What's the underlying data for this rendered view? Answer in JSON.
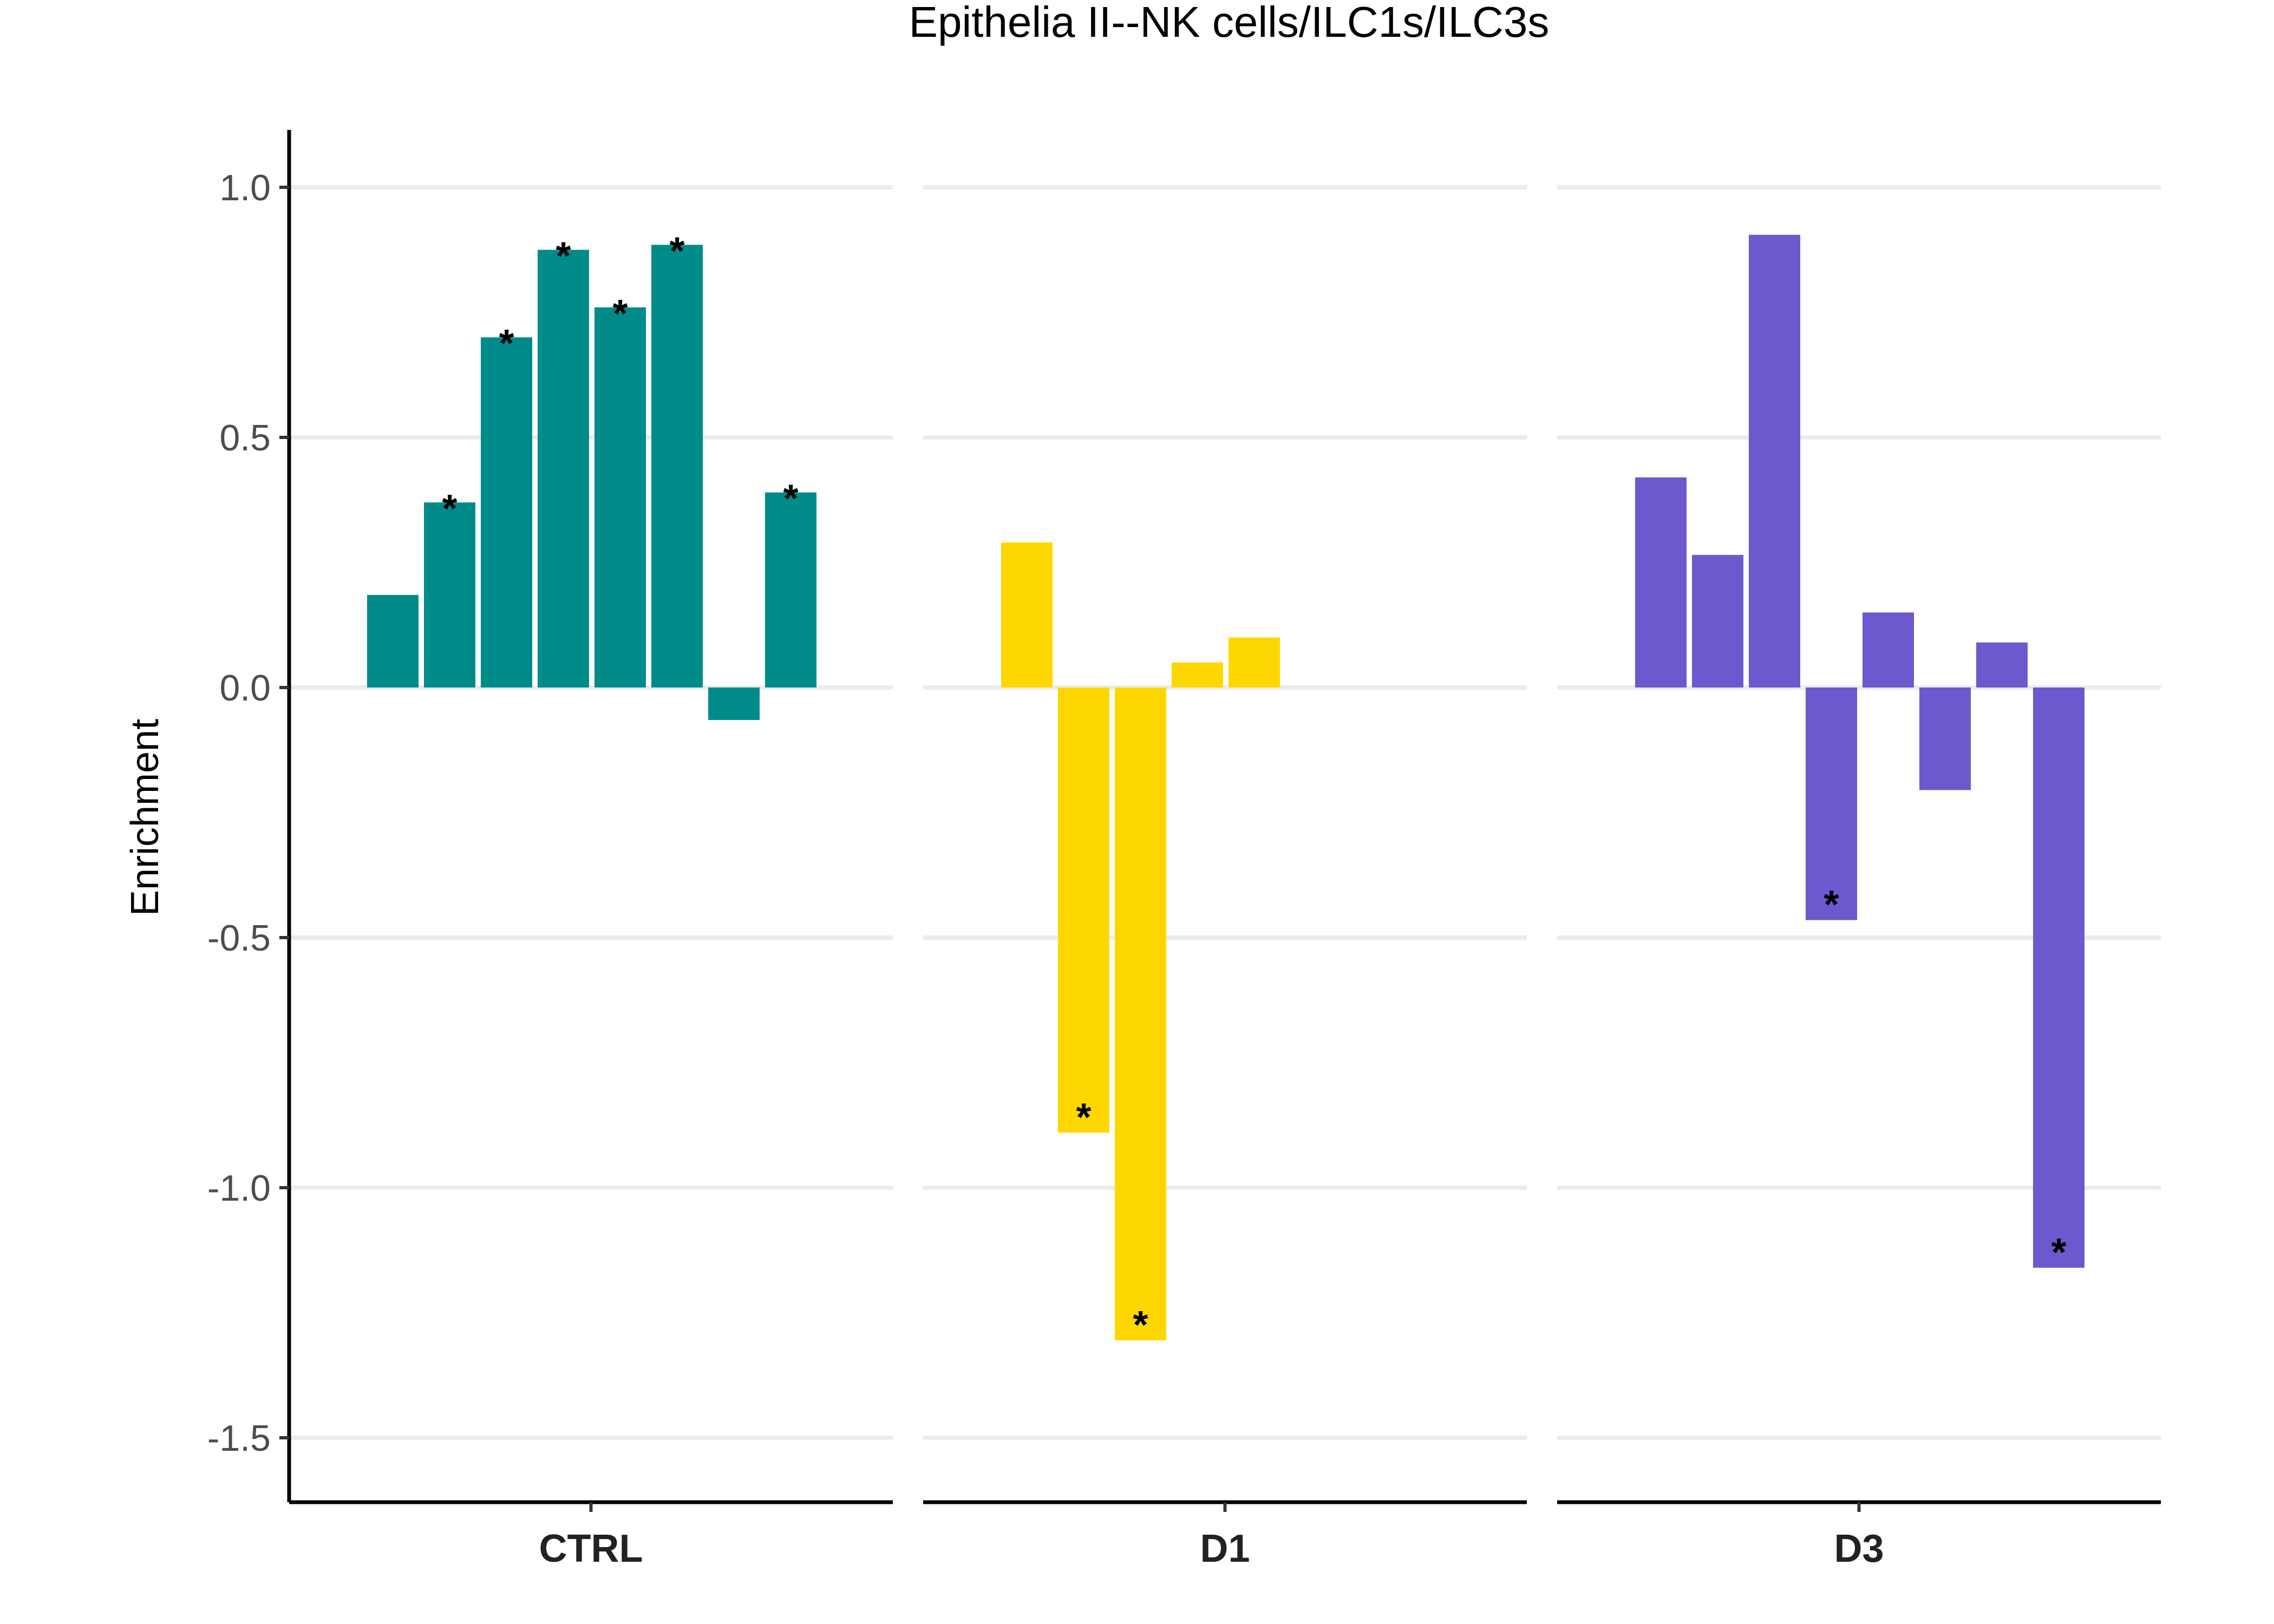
{
  "chart_data": {
    "type": "bar",
    "title": "Epithelia II--NK cells/ILC1s/ILC3s",
    "ylabel": "Enrichment",
    "xlabel": "",
    "ylim": [
      -1.62,
      1.12
    ],
    "yticks": [
      1.0,
      0.5,
      0.0,
      -0.5,
      -1.0,
      -1.5
    ],
    "ytick_labels": [
      "1.0",
      "0.5",
      "0.0",
      "-0.5",
      "-1.0",
      "-1.5"
    ],
    "grid": true,
    "significance_marker": "*",
    "panels": [
      {
        "name": "CTRL",
        "color": "#008B8B",
        "bars": [
          {
            "slot": 1,
            "value": 0.185,
            "sig": false
          },
          {
            "slot": 2,
            "value": 0.37,
            "sig": true
          },
          {
            "slot": 3,
            "value": 0.7,
            "sig": true
          },
          {
            "slot": 4,
            "value": 0.875,
            "sig": true
          },
          {
            "slot": 5,
            "value": 0.76,
            "sig": true
          },
          {
            "slot": 6,
            "value": 0.885,
            "sig": true
          },
          {
            "slot": 7,
            "value": -0.065,
            "sig": false
          },
          {
            "slot": 8,
            "value": 0.39,
            "sig": true
          }
        ]
      },
      {
        "name": "D1",
        "color": "#FFD700",
        "bars": [
          {
            "slot": 1,
            "value": 0.29,
            "sig": false
          },
          {
            "slot": 2,
            "value": -0.89,
            "sig": true
          },
          {
            "slot": 3,
            "value": -1.305,
            "sig": true
          },
          {
            "slot": 4,
            "value": 0.05,
            "sig": false
          },
          {
            "slot": 5,
            "value": 0.1,
            "sig": false
          }
        ]
      },
      {
        "name": "D3",
        "color": "#6A5ACD",
        "bars": [
          {
            "slot": 1,
            "value": 0.42,
            "sig": false
          },
          {
            "slot": 2,
            "value": 0.265,
            "sig": false
          },
          {
            "slot": 3,
            "value": 0.905,
            "sig": false
          },
          {
            "slot": 4,
            "value": -0.465,
            "sig": true
          },
          {
            "slot": 5,
            "value": 0.15,
            "sig": false
          },
          {
            "slot": 6,
            "value": -0.205,
            "sig": false
          },
          {
            "slot": 7,
            "value": 0.09,
            "sig": false
          },
          {
            "slot": 8,
            "value": -1.16,
            "sig": true
          }
        ]
      }
    ]
  }
}
